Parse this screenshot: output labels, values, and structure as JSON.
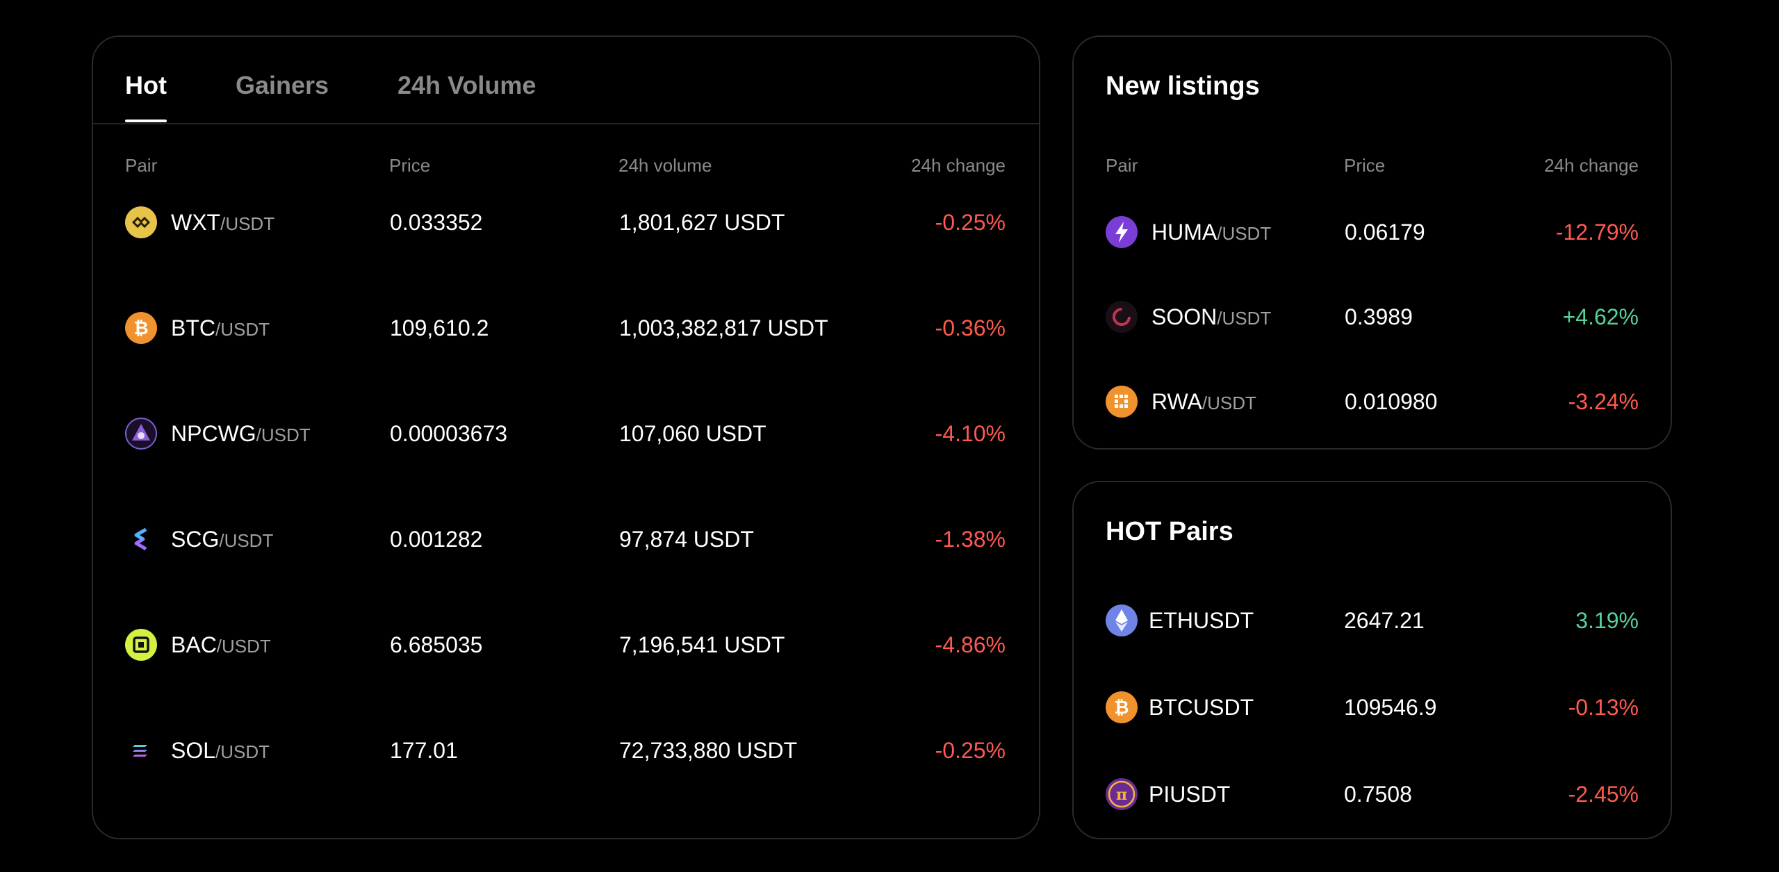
{
  "market": {
    "tabs": [
      {
        "label": "Hot"
      },
      {
        "label": "Gainers"
      },
      {
        "label": "24h Volume"
      }
    ],
    "headers": {
      "pair": "Pair",
      "price": "Price",
      "volume": "24h volume",
      "change": "24h change"
    },
    "rows": [
      {
        "base": "WXT",
        "quote": "/USDT",
        "price": "0.033352",
        "volume": "1,801,627 USDT",
        "change": "-0.25%",
        "icon": "wxt-icon"
      },
      {
        "base": "BTC",
        "quote": "/USDT",
        "price": "109,610.2",
        "volume": "1,003,382,817 USDT",
        "change": "-0.36%",
        "icon": "btc-icon"
      },
      {
        "base": "NPCWG",
        "quote": "/USDT",
        "price": "0.00003673",
        "volume": "107,060 USDT",
        "change": "-4.10%",
        "icon": "npcwg-icon"
      },
      {
        "base": "SCG",
        "quote": "/USDT",
        "price": "0.001282",
        "volume": "97,874 USDT",
        "change": "-1.38%",
        "icon": "scg-icon"
      },
      {
        "base": "BAC",
        "quote": "/USDT",
        "price": "6.685035",
        "volume": "7,196,541 USDT",
        "change": "-4.86%",
        "icon": "bac-icon"
      },
      {
        "base": "SOL",
        "quote": "/USDT",
        "price": "177.01",
        "volume": "72,733,880 USDT",
        "change": "-0.25%",
        "icon": "sol-icon"
      }
    ]
  },
  "listings": {
    "title": "New listings",
    "headers": {
      "pair": "Pair",
      "price": "Price",
      "change": "24h change"
    },
    "rows": [
      {
        "base": "HUMA",
        "quote": "/USDT",
        "price": "0.06179",
        "change": "-12.79%",
        "icon": "huma-icon"
      },
      {
        "base": "SOON",
        "quote": "/USDT",
        "price": "0.3989",
        "change": "+4.62%",
        "icon": "soon-icon"
      },
      {
        "base": "RWA",
        "quote": "/USDT",
        "price": "0.010980",
        "change": "-3.24%",
        "icon": "rwa-icon"
      }
    ]
  },
  "hot_pairs": {
    "title": "HOT Pairs",
    "rows": [
      {
        "pair": "ETHUSDT",
        "price": "2647.21",
        "change": "3.19%",
        "icon": "eth-icon"
      },
      {
        "pair": "BTCUSDT",
        "price": "109546.9",
        "change": "-0.13%",
        "icon": "btc-icon"
      },
      {
        "pair": "PIUSDT",
        "price": "0.7508",
        "change": "-2.45%",
        "icon": "pi-icon"
      }
    ]
  },
  "colors": {
    "negative": "#ff5a4f",
    "positive": "#55d29a",
    "muted": "#8a8a8a",
    "border": "#2a2a2a"
  }
}
